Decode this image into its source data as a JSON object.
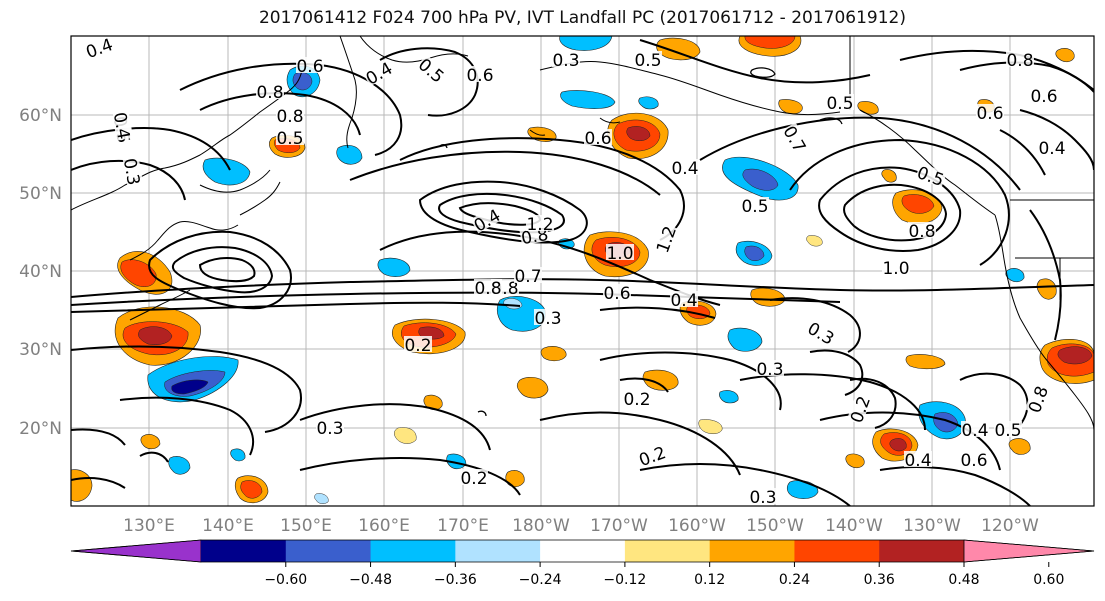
{
  "title": "2017061412 F024 700 hPa PV, IVT Landfall PC (2017061712 - 2017061912)",
  "lat_labels": [
    "60°N",
    "50°N",
    "40°N",
    "30°N",
    "20°N"
  ],
  "lon_labels": [
    "130°E",
    "140°E",
    "150°E",
    "160°E",
    "170°E",
    "180°W",
    "170°W",
    "160°W",
    "150°W",
    "140°W",
    "130°W",
    "120°W"
  ],
  "contour_labels": [
    "0.4",
    "0.5",
    "0.8",
    "0.6",
    "0.8",
    "0.4",
    "0.5",
    "0.3",
    "0.4",
    "0.5",
    "0.3",
    "0.5",
    "0.6",
    "0.4",
    "0.8",
    "1.2",
    "1.0",
    "1.2",
    "0.4",
    "0.6",
    "0.7",
    "0.5",
    "0.8",
    "1.0",
    "0.5",
    "0.8",
    "0.7",
    "0.8",
    "0.6",
    "0.4",
    "0.3",
    "0.2",
    "0.3",
    "0.3",
    "0.2",
    "0.3",
    "0.2",
    "0.2",
    "0.3",
    "0.4",
    "0.5",
    "0.2",
    "0.4",
    "0.6",
    "0.8",
    "0.6",
    "0.4",
    "0.6",
    "0.5",
    "0.8"
  ],
  "colorbar": {
    "ticks": [
      "−0.60",
      "−0.48",
      "−0.36",
      "−0.24",
      "−0.12",
      "0.12",
      "0.24",
      "0.36",
      "0.48",
      "0.60"
    ],
    "colors": [
      "#9932cc",
      "#00008b",
      "#3a5fcd",
      "#00bfff",
      "#b0e2ff",
      "#ffffff",
      "#ffe680",
      "#ffa500",
      "#ff4500",
      "#b22222",
      "#ff88aa"
    ]
  },
  "shading_colors": {
    "orange": "#ffa500",
    "red_orange": "#ff4500",
    "dark_red": "#b22222",
    "light_yellow": "#ffe680",
    "deep_sky_blue": "#00bfff",
    "royal_blue": "#3a5fcd",
    "light_blue": "#b0e2ff"
  }
}
